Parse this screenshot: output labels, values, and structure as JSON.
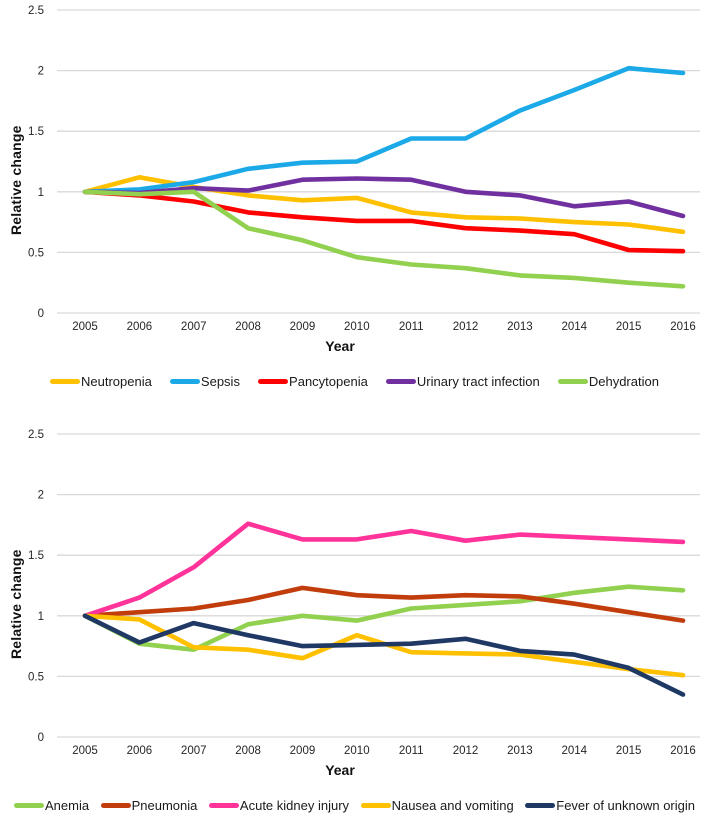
{
  "styles": {
    "grid_color": "#d9d9d9",
    "axis_line_color": "#d9d9d9",
    "tick_text_color": "#262626",
    "title_text_color": "#111111",
    "background": "#ffffff"
  },
  "chart_data": [
    {
      "type": "line",
      "title": "",
      "xlabel": "Year",
      "ylabel": "Relative change",
      "ylim": [
        0,
        2.5
      ],
      "yticks": [
        "0",
        "0.5",
        "1",
        "1.5",
        "2",
        "2.5"
      ],
      "grid": true,
      "legend_position": "bottom",
      "categories": [
        "2005",
        "2006",
        "2007",
        "2008",
        "2009",
        "2010",
        "2011",
        "2012",
        "2013",
        "2014",
        "2015",
        "2016"
      ],
      "series": [
        {
          "name": "Neutropenia",
          "color": "#FFC000",
          "values": [
            1.0,
            1.12,
            1.04,
            0.97,
            0.93,
            0.95,
            0.83,
            0.79,
            0.78,
            0.75,
            0.73,
            0.67
          ]
        },
        {
          "name": "Sepsis",
          "color": "#1BA9E8",
          "values": [
            1.0,
            1.02,
            1.08,
            1.19,
            1.24,
            1.25,
            1.44,
            1.44,
            1.67,
            1.84,
            2.02,
            1.98
          ]
        },
        {
          "name": "Pancytopenia",
          "color": "#FF0000",
          "values": [
            1.0,
            0.97,
            0.92,
            0.83,
            0.79,
            0.76,
            0.76,
            0.7,
            0.68,
            0.65,
            0.52,
            0.51
          ]
        },
        {
          "name": "Urinary tract infection",
          "color": "#7030A0",
          "values": [
            1.0,
            0.99,
            1.03,
            1.01,
            1.1,
            1.11,
            1.1,
            1.0,
            0.97,
            0.88,
            0.92,
            0.8
          ]
        },
        {
          "name": "Dehydration",
          "color": "#92D050",
          "values": [
            1.0,
            0.98,
            1.0,
            0.7,
            0.6,
            0.46,
            0.4,
            0.37,
            0.31,
            0.29,
            0.25,
            0.22
          ]
        }
      ]
    },
    {
      "type": "line",
      "title": "",
      "xlabel": "Year",
      "ylabel": "Relative change",
      "ylim": [
        0,
        2.5
      ],
      "yticks": [
        "0",
        "0.5",
        "1",
        "1.5",
        "2",
        "2.5"
      ],
      "grid": true,
      "legend_position": "bottom",
      "categories": [
        "2005",
        "2006",
        "2007",
        "2008",
        "2009",
        "2010",
        "2011",
        "2012",
        "2013",
        "2014",
        "2015",
        "2016"
      ],
      "series": [
        {
          "name": "Anemia",
          "color": "#92D050",
          "values": [
            1.0,
            0.77,
            0.72,
            0.93,
            1.0,
            0.96,
            1.06,
            1.09,
            1.12,
            1.19,
            1.24,
            1.21
          ]
        },
        {
          "name": "Pneumonia",
          "color": "#C23D0C",
          "values": [
            1.0,
            1.03,
            1.06,
            1.13,
            1.23,
            1.17,
            1.15,
            1.17,
            1.16,
            1.1,
            1.03,
            0.96
          ]
        },
        {
          "name": "Acute kidney injury",
          "color": "#FF3399",
          "values": [
            1.0,
            1.15,
            1.4,
            1.76,
            1.63,
            1.63,
            1.7,
            1.62,
            1.67,
            1.65,
            1.63,
            1.61
          ]
        },
        {
          "name": "Nausea and vomiting",
          "color": "#FFC000",
          "values": [
            1.0,
            0.97,
            0.74,
            0.72,
            0.65,
            0.84,
            0.7,
            0.69,
            0.68,
            0.62,
            0.56,
            0.51
          ]
        },
        {
          "name": "Fever of unknown origin",
          "color": "#1F3864",
          "values": [
            1.0,
            0.78,
            0.94,
            0.84,
            0.75,
            0.76,
            0.77,
            0.81,
            0.71,
            0.68,
            0.57,
            0.35
          ]
        }
      ]
    }
  ]
}
